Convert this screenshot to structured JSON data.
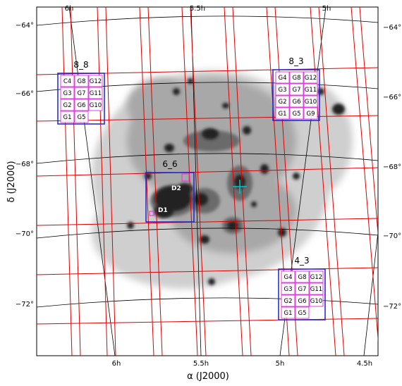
{
  "axes": {
    "x_title": "α (J2000)",
    "y_title": "δ (J2000)",
    "ra_labels_top": [
      "6h",
      "5.5h",
      "5h"
    ],
    "ra_labels_bottom": [
      "6h",
      "5.5h",
      "5h",
      "4.5h"
    ],
    "dec_labels_left": [
      "−64°",
      "−66°",
      "−68°",
      "−70°",
      "−72°"
    ],
    "dec_labels_right": [
      "−64°",
      "−66°",
      "−68°",
      "−70°",
      "−72°"
    ]
  },
  "fields": [
    {
      "name": "8_8",
      "cells": [
        [
          "C4",
          "G8",
          "G12"
        ],
        [
          "G3",
          "G7",
          "G11"
        ],
        [
          "G2",
          "G6",
          "G10"
        ],
        [
          "G1",
          "G5",
          ""
        ]
      ]
    },
    {
      "name": "8_3",
      "cells": [
        [
          "G4",
          "G8",
          "G12"
        ],
        [
          "G3",
          "G7",
          "G11"
        ],
        [
          "G2",
          "G6",
          "G10"
        ],
        [
          "G1",
          "G5",
          "G9"
        ]
      ]
    },
    {
      "name": "6_6",
      "cells": []
    },
    {
      "name": "4_3",
      "cells": [
        [
          "G4",
          "G8",
          "G12"
        ],
        [
          "G3",
          "G7",
          "G11"
        ],
        [
          "G2",
          "G6",
          "G10"
        ],
        [
          "G1",
          "G5",
          ""
        ]
      ]
    }
  ],
  "dwarfs": [
    "D1",
    "D2"
  ],
  "colors": {
    "grid_lines": "#e00000",
    "field_box": "#2020d0",
    "cell_box": "#e040e0",
    "coordinate_lines": "#000000",
    "marker": "#00c8c8"
  }
}
